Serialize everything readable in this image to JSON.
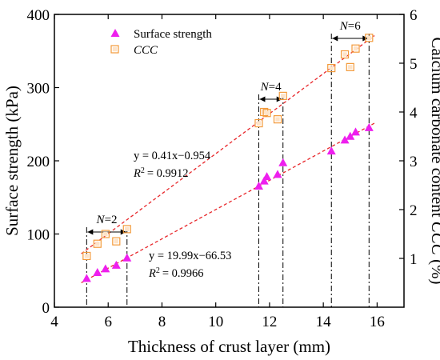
{
  "chart_data": {
    "type": "scatter",
    "xlabel": "Thickness of crust layer (mm)",
    "ylabel_left": "Surface strength (kPa)",
    "ylabel_right_prefix": "Calcium carbonate content ",
    "ylabel_right_italic": "CCC",
    "ylabel_right_suffix": " (%)",
    "xlim": [
      4,
      17
    ],
    "ylim_left": [
      0,
      400
    ],
    "ylim_right": [
      0,
      6
    ],
    "x_ticks": [
      4,
      6,
      8,
      10,
      12,
      14,
      16
    ],
    "y_left_ticks": [
      0,
      100,
      200,
      300,
      400
    ],
    "y_right_ticks": [
      1,
      2,
      3,
      4,
      5,
      6
    ],
    "grid": false,
    "legend_position": "top-left",
    "series": [
      {
        "name": "Surface strength",
        "axis": "left",
        "marker": "triangle",
        "color": "#ee1fee",
        "points": [
          [
            5.2,
            39
          ],
          [
            5.6,
            47
          ],
          [
            5.9,
            52
          ],
          [
            6.3,
            57
          ],
          [
            6.7,
            67
          ],
          [
            11.6,
            165
          ],
          [
            11.8,
            172
          ],
          [
            11.9,
            178
          ],
          [
            12.3,
            181
          ],
          [
            12.5,
            197
          ],
          [
            14.3,
            213
          ],
          [
            14.8,
            228
          ],
          [
            15.0,
            233
          ],
          [
            15.2,
            239
          ],
          [
            15.7,
            245
          ]
        ]
      },
      {
        "name": "CCC",
        "axis": "right",
        "marker": "square",
        "color": "#f39a3a",
        "points": [
          [
            5.2,
            1.05
          ],
          [
            5.6,
            1.3
          ],
          [
            5.9,
            1.5
          ],
          [
            6.3,
            1.35
          ],
          [
            6.7,
            1.6
          ],
          [
            11.6,
            3.77
          ],
          [
            11.8,
            4.0
          ],
          [
            11.9,
            3.98
          ],
          [
            12.3,
            3.85
          ],
          [
            12.5,
            4.33
          ],
          [
            14.3,
            4.9
          ],
          [
            14.8,
            5.18
          ],
          [
            15.0,
            4.92
          ],
          [
            15.2,
            5.3
          ],
          [
            15.7,
            5.52
          ]
        ]
      }
    ],
    "fit_lines": [
      {
        "axis": "left",
        "slope": 19.99,
        "intercept": -66.53,
        "x_range": [
          5.0,
          15.9
        ]
      },
      {
        "axis": "right",
        "slope": 0.41,
        "intercept": -0.954,
        "x_range": [
          5.0,
          15.9
        ]
      }
    ],
    "annotations": {
      "eq_ccc": "y = 0.41x−0.954",
      "r2_ccc": "= 0.9912",
      "eq_ss": "y = 19.99x−66.53",
      "r2_ss": "= 0.9966",
      "r2_symbol": "R",
      "r2_sup": "2"
    },
    "groups": [
      {
        "label_italic": "N",
        "label_suffix": "=2",
        "x_range": [
          5.2,
          6.7
        ]
      },
      {
        "label_italic": "N",
        "label_suffix": "=4",
        "x_range": [
          11.6,
          12.5
        ]
      },
      {
        "label_italic": "N",
        "label_suffix": "=6",
        "x_range": [
          14.3,
          15.7
        ]
      }
    ]
  },
  "colors": {
    "fit_line": "#e8262a",
    "bracket": "#000000"
  }
}
